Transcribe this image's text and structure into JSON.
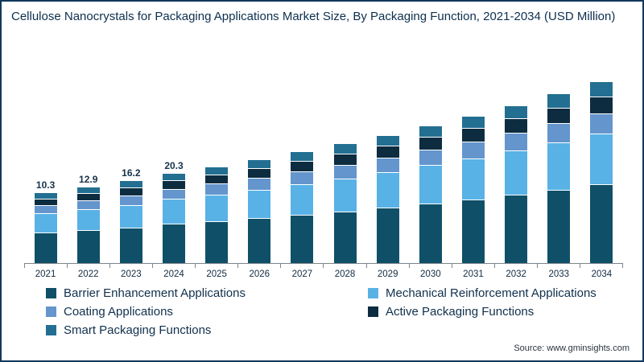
{
  "title": "Cellulose Nanocrystals for Packaging Applications Market Size, By Packaging Function, 2021-2034 (USD Million)",
  "source": "Source: www.gminsights.com",
  "chart_data": {
    "type": "bar",
    "stacked": true,
    "title": "Cellulose Nanocrystals for Packaging Applications Market Size, By Packaging Function, 2021-2034 (USD Million)",
    "xlabel": "",
    "ylabel": "",
    "grid": false,
    "legend_position": "bottom",
    "categories": [
      "2021",
      "2022",
      "2023",
      "2024",
      "2025",
      "2026",
      "2027",
      "2028",
      "2029",
      "2030",
      "2031",
      "2032",
      "2033",
      "2034"
    ],
    "series": [
      {
        "name": "Barrier Enhancement Applications",
        "color": "#0f5068",
        "values": [
          4.6,
          5.7,
          7.1,
          9.0,
          10.8,
          13.1,
          15.8,
          19.2,
          23.2,
          28.1,
          33.9,
          41.0,
          49.5,
          59.9
        ]
      },
      {
        "name": "Mechanical Reinforcement Applications",
        "color": "#58b2e6",
        "values": [
          2.9,
          3.6,
          4.5,
          5.7,
          6.9,
          8.3,
          10.1,
          12.2,
          14.8,
          17.8,
          21.6,
          26.1,
          31.5,
          38.1
        ]
      },
      {
        "name": "Coating Applications",
        "color": "#6495cd",
        "values": [
          1.1,
          1.4,
          1.8,
          2.2,
          2.7,
          3.3,
          4.0,
          4.8,
          5.8,
          7.0,
          8.5,
          10.2,
          12.4,
          15.0
        ]
      },
      {
        "name": "Active Packaging Functions",
        "color": "#0d2c40",
        "values": [
          0.9,
          1.2,
          1.5,
          1.8,
          2.2,
          2.7,
          3.2,
          3.9,
          4.7,
          5.7,
          6.9,
          8.4,
          10.1,
          12.2
        ]
      },
      {
        "name": "Smart Packaging Functions",
        "color": "#236f92",
        "values": [
          0.8,
          1.0,
          1.3,
          1.6,
          2.0,
          2.4,
          2.9,
          3.5,
          4.2,
          5.1,
          6.2,
          7.4,
          9.0,
          10.9
        ]
      }
    ],
    "totals": [
      10.3,
      12.9,
      16.2,
      20.3,
      24.6,
      29.8,
      36.0,
      43.6,
      52.7,
      63.7,
      77.1,
      93.1,
      112.5,
      136.1
    ],
    "bar_labels": [
      "10.3",
      "12.9",
      "16.2",
      "20.3",
      "",
      "",
      "",
      "",
      "",
      "",
      "",
      "",
      "",
      ""
    ]
  }
}
